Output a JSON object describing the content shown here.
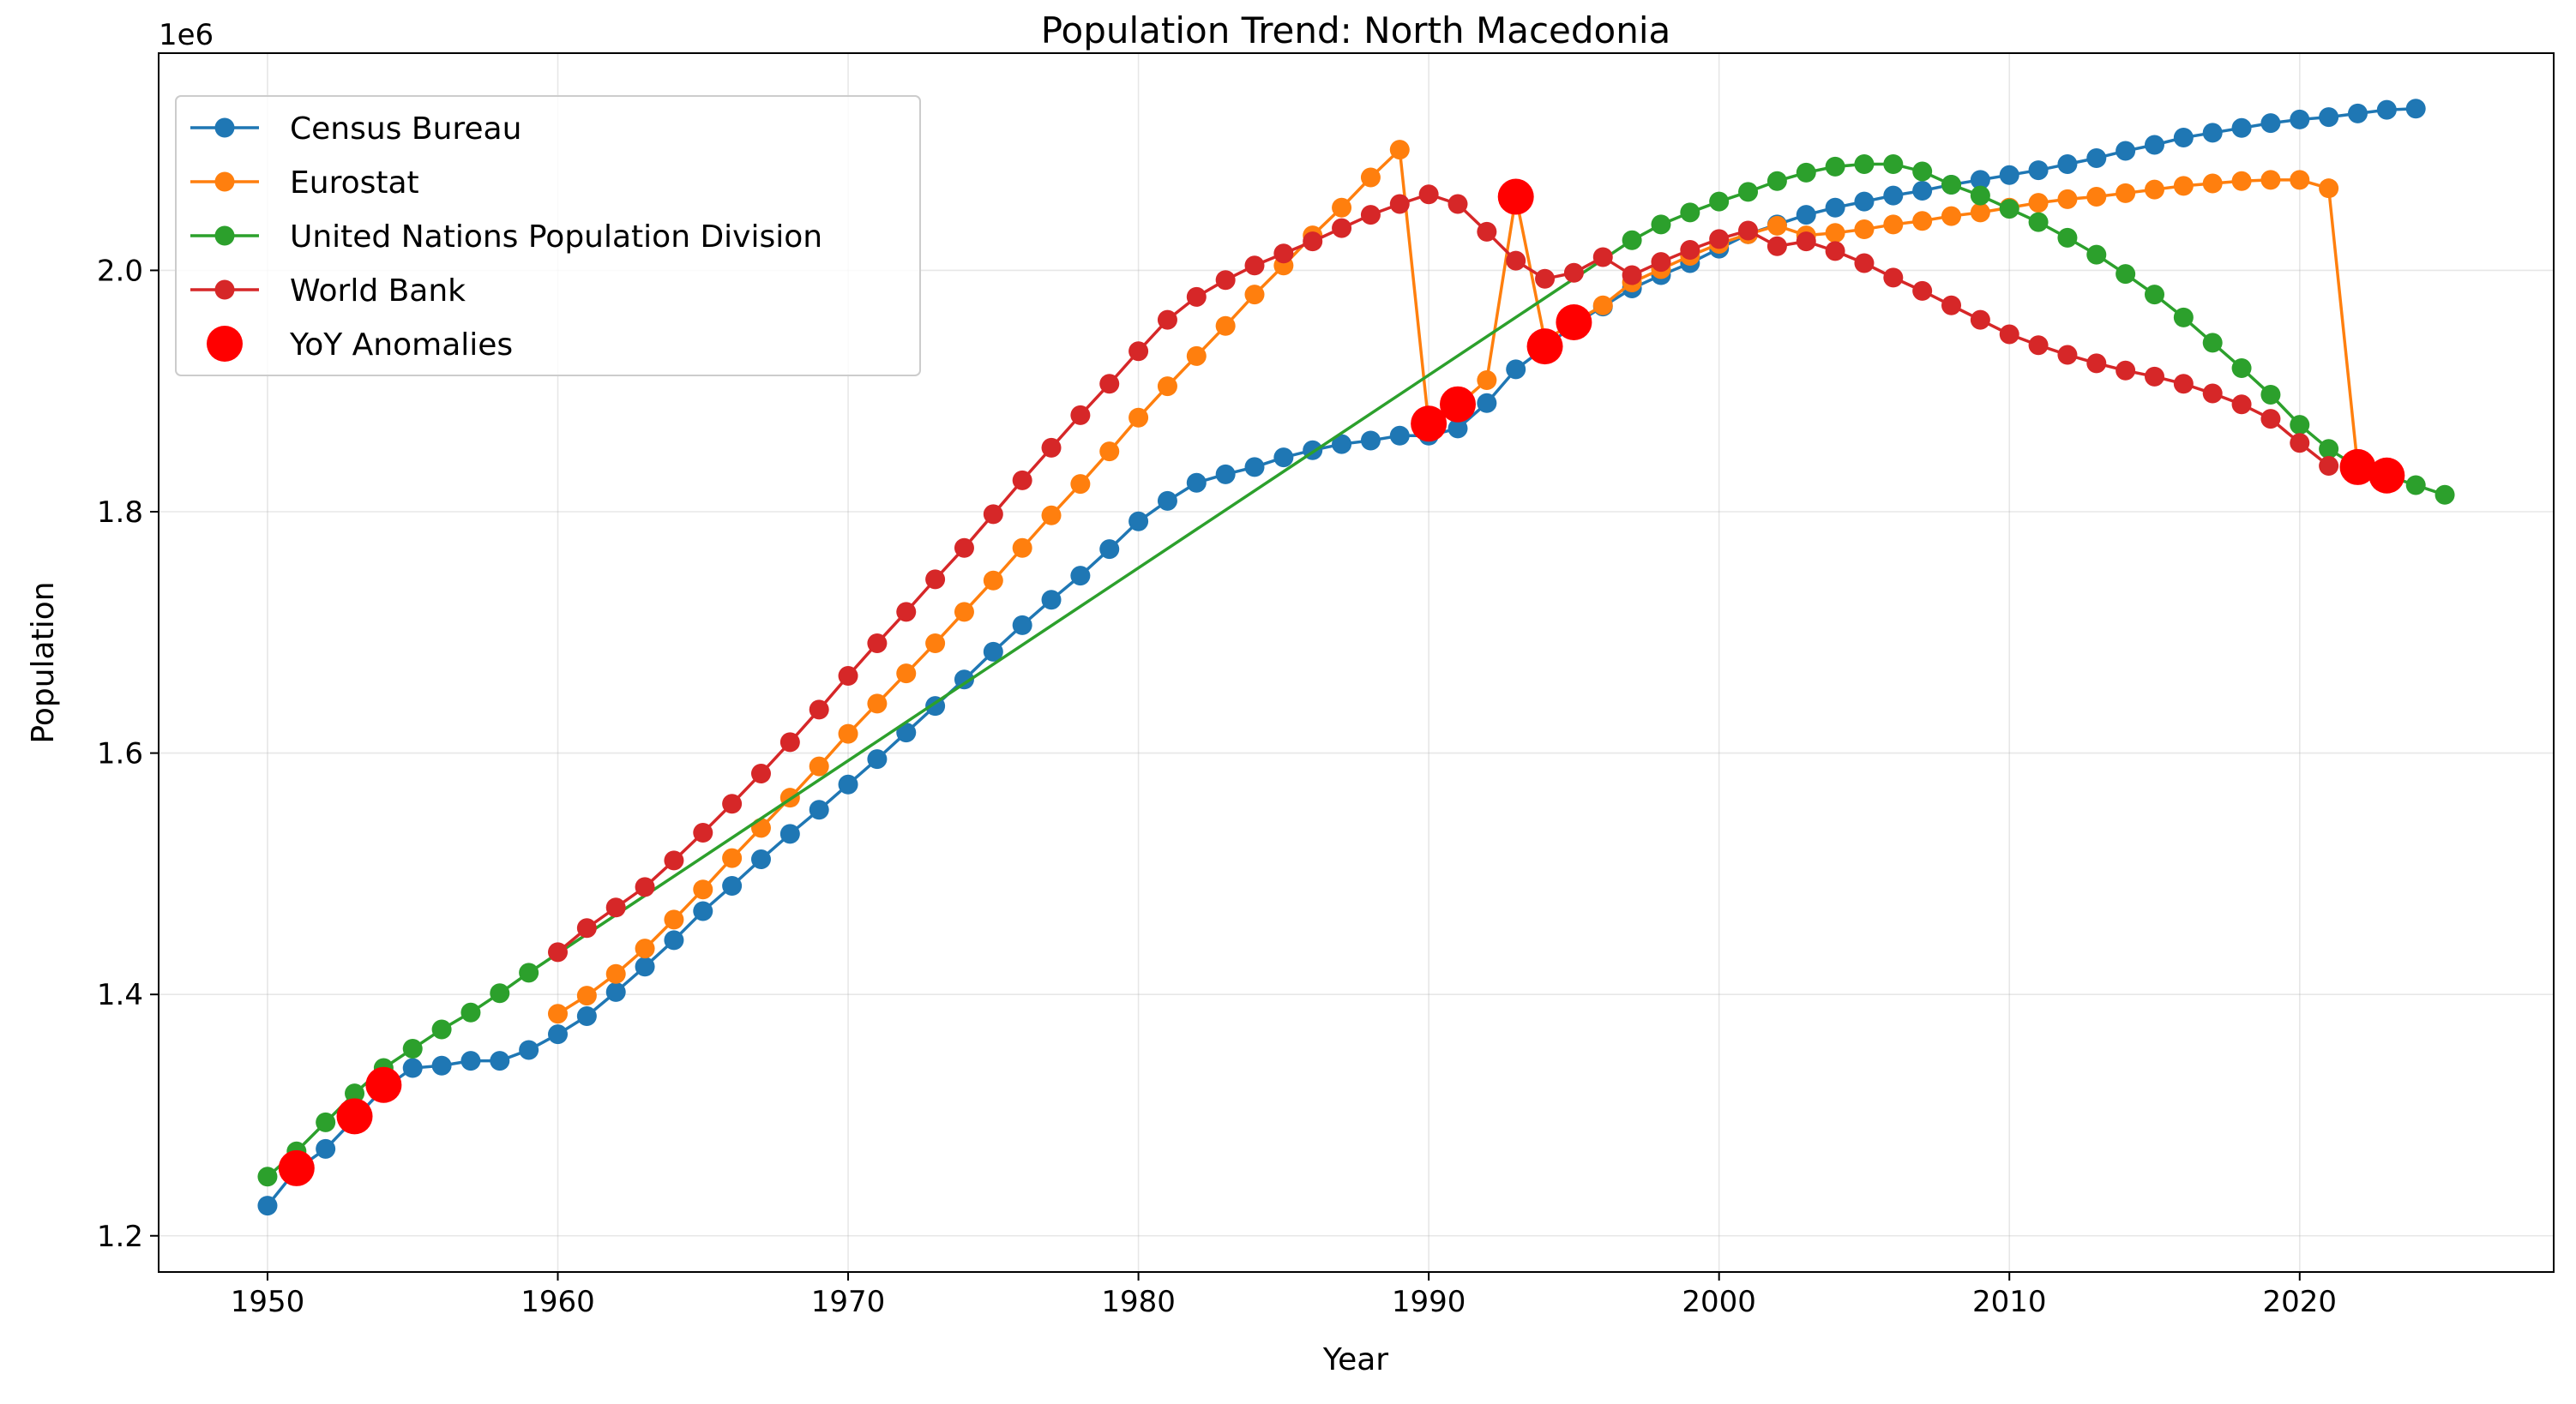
{
  "chart_data": {
    "type": "line",
    "title": "Population Trend: North Macedonia",
    "xlabel": "Year",
    "ylabel": "Population",
    "y_offset_label": "1e6",
    "xlim": [
      1946.25,
      2028.75
    ],
    "ylim": [
      1.17,
      2.18
    ],
    "x_ticks": [
      1950,
      1960,
      1970,
      1980,
      1990,
      2000,
      2010,
      2020
    ],
    "y_ticks": [
      1.2,
      1.4,
      1.6,
      1.8,
      2.0
    ],
    "y_tick_labels": [
      "1.2",
      "1.4",
      "1.6",
      "1.8",
      "2.0"
    ],
    "grid": true,
    "legend_position": "top-left",
    "series": [
      {
        "name": "Census Bureau",
        "color": "#1f77b4",
        "x": [
          1950,
          1951,
          1952,
          1953,
          1954,
          1955,
          1956,
          1957,
          1958,
          1959,
          1960,
          1961,
          1962,
          1963,
          1964,
          1965,
          1966,
          1967,
          1968,
          1969,
          1970,
          1971,
          1972,
          1973,
          1974,
          1975,
          1976,
          1977,
          1978,
          1979,
          1980,
          1981,
          1982,
          1983,
          1984,
          1985,
          1986,
          1987,
          1988,
          1989,
          1990,
          1991,
          1992,
          1993,
          1994,
          1995,
          1996,
          1997,
          1998,
          1999,
          2000,
          2001,
          2002,
          2003,
          2004,
          2005,
          2006,
          2007,
          2008,
          2009,
          2010,
          2011,
          2012,
          2013,
          2014,
          2015,
          2016,
          2017,
          2018,
          2019,
          2020,
          2021,
          2022,
          2023,
          2024
        ],
        "y": [
          1.225,
          1.255,
          1.272,
          1.297,
          1.322,
          1.339,
          1.341,
          1.345,
          1.345,
          1.354,
          1.367,
          1.382,
          1.402,
          1.423,
          1.445,
          1.469,
          1.49,
          1.512,
          1.533,
          1.553,
          1.574,
          1.595,
          1.617,
          1.639,
          1.661,
          1.684,
          1.706,
          1.727,
          1.747,
          1.769,
          1.792,
          1.809,
          1.824,
          1.831,
          1.837,
          1.845,
          1.851,
          1.856,
          1.859,
          1.863,
          1.863,
          1.869,
          1.89,
          1.918,
          1.936,
          1.955,
          1.97,
          1.985,
          1.996,
          2.006,
          2.018,
          2.03,
          2.038,
          2.046,
          2.052,
          2.057,
          2.062,
          2.066,
          2.071,
          2.075,
          2.079,
          2.083,
          2.088,
          2.093,
          2.099,
          2.104,
          2.11,
          2.114,
          2.118,
          2.122,
          2.125,
          2.127,
          2.13,
          2.133,
          2.134
        ]
      },
      {
        "name": "Eurostat",
        "color": "#ff7f0e",
        "x": [
          1960,
          1961,
          1962,
          1963,
          1964,
          1965,
          1966,
          1967,
          1968,
          1969,
          1970,
          1971,
          1972,
          1973,
          1974,
          1975,
          1976,
          1977,
          1978,
          1979,
          1980,
          1981,
          1982,
          1983,
          1984,
          1985,
          1986,
          1987,
          1988,
          1989,
          1990,
          1991,
          1992,
          1993,
          1994,
          1995,
          1996,
          1997,
          1998,
          1999,
          2000,
          2001,
          2002,
          2003,
          2004,
          2005,
          2006,
          2007,
          2008,
          2009,
          2010,
          2011,
          2012,
          2013,
          2014,
          2015,
          2016,
          2017,
          2018,
          2019,
          2020,
          2021,
          2022,
          2023
        ],
        "y": [
          1.384,
          1.399,
          1.417,
          1.438,
          1.462,
          1.487,
          1.513,
          1.538,
          1.563,
          1.589,
          1.616,
          1.641,
          1.666,
          1.691,
          1.717,
          1.743,
          1.77,
          1.797,
          1.823,
          1.85,
          1.878,
          1.904,
          1.929,
          1.954,
          1.98,
          2.004,
          2.029,
          2.052,
          2.077,
          2.1,
          1.872,
          1.888,
          1.909,
          2.061,
          1.942,
          1.957,
          1.971,
          1.99,
          2.001,
          2.012,
          2.022,
          2.03,
          2.037,
          2.029,
          2.031,
          2.034,
          2.038,
          2.041,
          2.045,
          2.048,
          2.052,
          2.056,
          2.059,
          2.061,
          2.064,
          2.067,
          2.07,
          2.072,
          2.074,
          2.075,
          2.075,
          2.068,
          1.837,
          1.83
        ]
      },
      {
        "name": "United Nations Population Division",
        "color": "#2ca02c",
        "x": [
          1950,
          1951,
          1952,
          1953,
          1954,
          1955,
          1956,
          1957,
          1958,
          1959,
          1997,
          1998,
          1999,
          2000,
          2001,
          2002,
          2003,
          2004,
          2005,
          2006,
          2007,
          2008,
          2009,
          2010,
          2011,
          2012,
          2013,
          2014,
          2015,
          2016,
          2017,
          2018,
          2019,
          2020,
          2021,
          2022,
          2023,
          2024,
          2025
        ],
        "y": [
          1.249,
          1.27,
          1.294,
          1.318,
          1.339,
          1.355,
          1.371,
          1.385,
          1.401,
          1.418,
          2.025,
          2.038,
          2.048,
          2.057,
          2.065,
          2.074,
          2.081,
          2.086,
          2.088,
          2.088,
          2.082,
          2.071,
          2.062,
          2.051,
          2.04,
          2.027,
          2.013,
          1.997,
          1.98,
          1.961,
          1.94,
          1.919,
          1.897,
          1.872,
          1.852,
          1.837,
          1.83,
          1.822,
          1.814
        ]
      },
      {
        "name": "World Bank",
        "color": "#d62728",
        "x": [
          1960,
          1961,
          1962,
          1963,
          1964,
          1965,
          1966,
          1967,
          1968,
          1969,
          1970,
          1971,
          1972,
          1973,
          1974,
          1975,
          1976,
          1977,
          1978,
          1979,
          1980,
          1981,
          1982,
          1983,
          1984,
          1985,
          1986,
          1987,
          1988,
          1989,
          1990,
          1991,
          1992,
          1993,
          1994,
          1995,
          1996,
          1997,
          1998,
          1999,
          2000,
          2001,
          2002,
          2003,
          2004,
          2005,
          2006,
          2007,
          2008,
          2009,
          2010,
          2011,
          2012,
          2013,
          2014,
          2015,
          2016,
          2017,
          2018,
          2019,
          2020,
          2021
        ],
        "y": [
          1.435,
          1.455,
          1.472,
          1.489,
          1.511,
          1.534,
          1.558,
          1.583,
          1.609,
          1.636,
          1.664,
          1.691,
          1.717,
          1.744,
          1.77,
          1.798,
          1.826,
          1.853,
          1.88,
          1.906,
          1.933,
          1.959,
          1.978,
          1.992,
          2.004,
          2.014,
          2.024,
          2.035,
          2.046,
          2.055,
          2.063,
          2.055,
          2.032,
          2.008,
          1.993,
          1.998,
          2.011,
          1.996,
          2.007,
          2.017,
          2.026,
          2.033,
          2.02,
          2.024,
          2.016,
          2.006,
          1.994,
          1.983,
          1.971,
          1.959,
          1.947,
          1.938,
          1.93,
          1.923,
          1.917,
          1.912,
          1.906,
          1.898,
          1.889,
          1.877,
          1.857,
          1.838
        ]
      }
    ],
    "anomalies": {
      "name": "YoY Anomalies",
      "color": "#ff0000",
      "x": [
        1951,
        1953,
        1954,
        1990,
        1991,
        1993,
        1994,
        1995,
        2022,
        2023
      ],
      "y": [
        1.256,
        1.299,
        1.325,
        1.873,
        1.889,
        2.061,
        1.937,
        1.957,
        1.837,
        1.83
      ]
    }
  }
}
